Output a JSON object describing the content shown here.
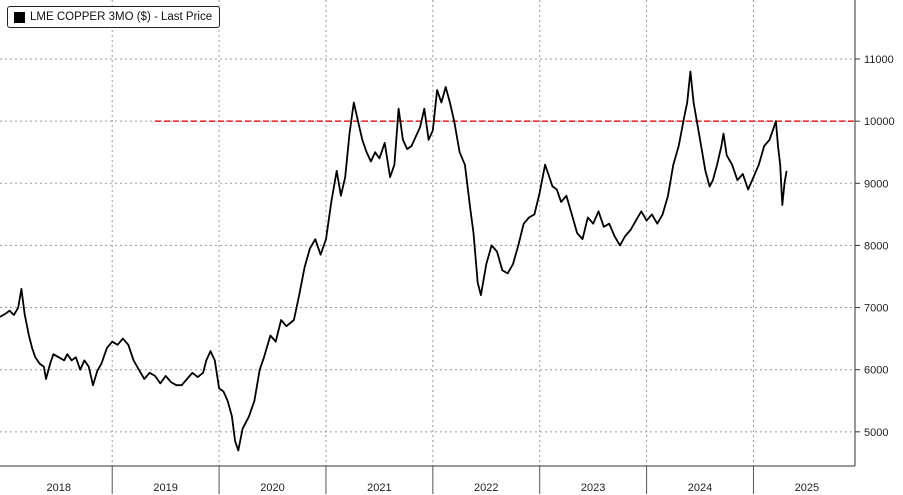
{
  "chart_data": {
    "type": "line",
    "legend": {
      "label": "LME COPPER 3MO ($) - Last Price",
      "position": "top-left"
    },
    "x_categories": [
      "2018",
      "2019",
      "2020",
      "2021",
      "2022",
      "2023",
      "2024",
      "2025"
    ],
    "y_ticks": [
      5000,
      6000,
      7000,
      8000,
      9000,
      10000,
      11000
    ],
    "ylim": [
      4450,
      11950
    ],
    "xlim": [
      2017.95,
      2025.95
    ],
    "y_axis_side": "right",
    "grid": true,
    "reference_line": {
      "value": 10000,
      "x_start": 2019.4,
      "color": "#e8312e",
      "style": "dashed"
    },
    "series": [
      {
        "color": "#000000",
        "points": [
          [
            2017.95,
            6850
          ],
          [
            2018.0,
            6900
          ],
          [
            2018.04,
            6950
          ],
          [
            2018.08,
            6880
          ],
          [
            2018.12,
            7000
          ],
          [
            2018.15,
            7300
          ],
          [
            2018.18,
            6900
          ],
          [
            2018.22,
            6550
          ],
          [
            2018.25,
            6350
          ],
          [
            2018.28,
            6200
          ],
          [
            2018.32,
            6100
          ],
          [
            2018.36,
            6050
          ],
          [
            2018.38,
            5850
          ],
          [
            2018.42,
            6100
          ],
          [
            2018.45,
            6250
          ],
          [
            2018.5,
            6200
          ],
          [
            2018.55,
            6150
          ],
          [
            2018.58,
            6250
          ],
          [
            2018.62,
            6150
          ],
          [
            2018.66,
            6200
          ],
          [
            2018.7,
            6000
          ],
          [
            2018.74,
            6150
          ],
          [
            2018.78,
            6050
          ],
          [
            2018.82,
            5750
          ],
          [
            2018.86,
            5980
          ],
          [
            2018.9,
            6100
          ],
          [
            2018.95,
            6350
          ],
          [
            2019.0,
            6450
          ],
          [
            2019.05,
            6400
          ],
          [
            2019.1,
            6500
          ],
          [
            2019.15,
            6400
          ],
          [
            2019.2,
            6150
          ],
          [
            2019.25,
            6000
          ],
          [
            2019.3,
            5850
          ],
          [
            2019.35,
            5950
          ],
          [
            2019.4,
            5900
          ],
          [
            2019.45,
            5780
          ],
          [
            2019.5,
            5900
          ],
          [
            2019.55,
            5800
          ],
          [
            2019.6,
            5750
          ],
          [
            2019.65,
            5750
          ],
          [
            2019.7,
            5850
          ],
          [
            2019.75,
            5950
          ],
          [
            2019.8,
            5880
          ],
          [
            2019.85,
            5950
          ],
          [
            2019.88,
            6150
          ],
          [
            2019.92,
            6300
          ],
          [
            2019.96,
            6150
          ],
          [
            2020.0,
            5700
          ],
          [
            2020.04,
            5650
          ],
          [
            2020.08,
            5500
          ],
          [
            2020.12,
            5250
          ],
          [
            2020.15,
            4850
          ],
          [
            2020.18,
            4700
          ],
          [
            2020.22,
            5050
          ],
          [
            2020.28,
            5250
          ],
          [
            2020.33,
            5500
          ],
          [
            2020.38,
            6000
          ],
          [
            2020.42,
            6200
          ],
          [
            2020.48,
            6550
          ],
          [
            2020.53,
            6450
          ],
          [
            2020.58,
            6800
          ],
          [
            2020.63,
            6700
          ],
          [
            2020.7,
            6800
          ],
          [
            2020.75,
            7200
          ],
          [
            2020.8,
            7650
          ],
          [
            2020.85,
            7950
          ],
          [
            2020.9,
            8100
          ],
          [
            2020.95,
            7850
          ],
          [
            2021.0,
            8100
          ],
          [
            2021.05,
            8700
          ],
          [
            2021.1,
            9200
          ],
          [
            2021.14,
            8800
          ],
          [
            2021.18,
            9100
          ],
          [
            2021.22,
            9800
          ],
          [
            2021.26,
            10300
          ],
          [
            2021.3,
            10000
          ],
          [
            2021.34,
            9700
          ],
          [
            2021.38,
            9500
          ],
          [
            2021.42,
            9350
          ],
          [
            2021.46,
            9500
          ],
          [
            2021.5,
            9400
          ],
          [
            2021.55,
            9650
          ],
          [
            2021.6,
            9100
          ],
          [
            2021.64,
            9300
          ],
          [
            2021.68,
            10200
          ],
          [
            2021.72,
            9700
          ],
          [
            2021.76,
            9550
          ],
          [
            2021.8,
            9600
          ],
          [
            2021.84,
            9750
          ],
          [
            2021.88,
            9900
          ],
          [
            2021.92,
            10200
          ],
          [
            2021.96,
            9700
          ],
          [
            2022.0,
            9850
          ],
          [
            2022.04,
            10500
          ],
          [
            2022.08,
            10300
          ],
          [
            2022.12,
            10550
          ],
          [
            2022.16,
            10300
          ],
          [
            2022.2,
            10000
          ],
          [
            2022.25,
            9500
          ],
          [
            2022.3,
            9300
          ],
          [
            2022.35,
            8600
          ],
          [
            2022.38,
            8200
          ],
          [
            2022.42,
            7400
          ],
          [
            2022.45,
            7200
          ],
          [
            2022.5,
            7700
          ],
          [
            2022.55,
            8000
          ],
          [
            2022.6,
            7900
          ],
          [
            2022.65,
            7600
          ],
          [
            2022.7,
            7550
          ],
          [
            2022.75,
            7700
          ],
          [
            2022.8,
            8000
          ],
          [
            2022.85,
            8350
          ],
          [
            2022.9,
            8450
          ],
          [
            2022.95,
            8500
          ],
          [
            2023.0,
            8850
          ],
          [
            2023.05,
            9300
          ],
          [
            2023.08,
            9150
          ],
          [
            2023.12,
            8950
          ],
          [
            2023.16,
            8900
          ],
          [
            2023.2,
            8700
          ],
          [
            2023.25,
            8800
          ],
          [
            2023.3,
            8500
          ],
          [
            2023.35,
            8200
          ],
          [
            2023.4,
            8100
          ],
          [
            2023.45,
            8450
          ],
          [
            2023.5,
            8350
          ],
          [
            2023.55,
            8550
          ],
          [
            2023.6,
            8300
          ],
          [
            2023.65,
            8350
          ],
          [
            2023.7,
            8150
          ],
          [
            2023.75,
            8000
          ],
          [
            2023.8,
            8150
          ],
          [
            2023.85,
            8250
          ],
          [
            2023.9,
            8400
          ],
          [
            2023.95,
            8550
          ],
          [
            2024.0,
            8400
          ],
          [
            2024.05,
            8500
          ],
          [
            2024.1,
            8350
          ],
          [
            2024.15,
            8500
          ],
          [
            2024.2,
            8800
          ],
          [
            2024.25,
            9300
          ],
          [
            2024.3,
            9600
          ],
          [
            2024.35,
            10050
          ],
          [
            2024.38,
            10300
          ],
          [
            2024.41,
            10800
          ],
          [
            2024.44,
            10300
          ],
          [
            2024.48,
            9900
          ],
          [
            2024.52,
            9500
          ],
          [
            2024.55,
            9200
          ],
          [
            2024.59,
            8950
          ],
          [
            2024.62,
            9050
          ],
          [
            2024.66,
            9300
          ],
          [
            2024.7,
            9600
          ],
          [
            2024.72,
            9800
          ],
          [
            2024.75,
            9450
          ],
          [
            2024.8,
            9300
          ],
          [
            2024.85,
            9050
          ],
          [
            2024.9,
            9150
          ],
          [
            2024.95,
            8900
          ],
          [
            2025.0,
            9100
          ],
          [
            2025.05,
            9300
          ],
          [
            2025.1,
            9600
          ],
          [
            2025.15,
            9700
          ],
          [
            2025.19,
            9900
          ],
          [
            2025.21,
            10000
          ],
          [
            2025.23,
            9600
          ],
          [
            2025.25,
            9300
          ],
          [
            2025.27,
            8650
          ],
          [
            2025.29,
            9000
          ],
          [
            2025.31,
            9200
          ]
        ]
      }
    ]
  }
}
